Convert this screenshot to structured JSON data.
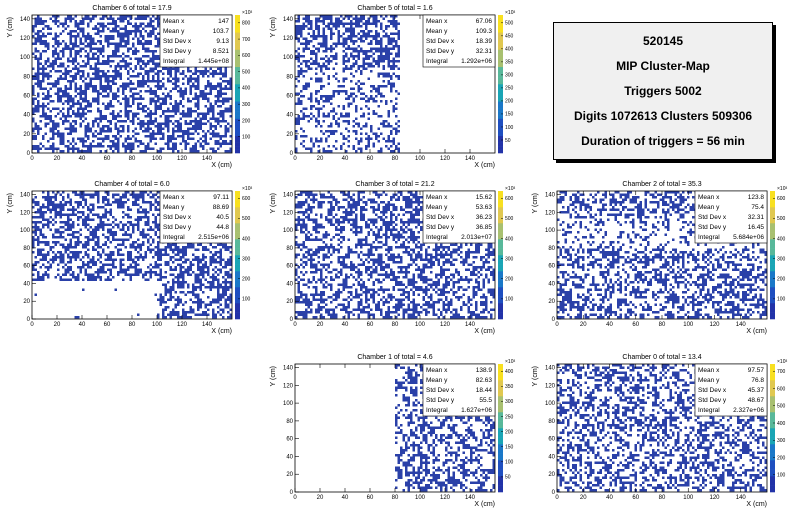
{
  "info": {
    "run": "520145",
    "title": "MIP Cluster-Map",
    "triggers": "Triggers 5002",
    "digits": "Digits 1072613 Clusters 509306",
    "duration": "Duration of triggers = 56 min"
  },
  "chart_data": [
    {
      "type": "heatmap",
      "title": "Chamber 6  of total = 17.9",
      "xlabel": "X (cm)",
      "ylabel": "Y (cm)",
      "xlim": [
        0,
        160
      ],
      "ylim": [
        0,
        144
      ],
      "xticks": [
        0,
        20,
        40,
        60,
        80,
        100,
        120,
        140
      ],
      "yticks": [
        0,
        20,
        40,
        60,
        80,
        100,
        120,
        140
      ],
      "z_exponent": "×10³",
      "zticks": [
        100,
        200,
        300,
        400,
        500,
        600,
        700,
        800
      ],
      "stats": [
        [
          "Mean x",
          "147"
        ],
        [
          "Mean y",
          "103.7"
        ],
        [
          "Std Dev x",
          "9.13"
        ],
        [
          "Std Dev y",
          "8.521"
        ],
        [
          "Integral",
          "1.445e+08"
        ]
      ]
    },
    {
      "type": "heatmap",
      "title": "Chamber 5  of total = 1.6",
      "xlabel": "X (cm)",
      "ylabel": "Y (cm)",
      "xlim": [
        0,
        160
      ],
      "ylim": [
        0,
        144
      ],
      "xticks": [
        0,
        20,
        40,
        60,
        80,
        100,
        120,
        140
      ],
      "yticks": [
        0,
        20,
        40,
        60,
        80,
        100,
        120,
        140
      ],
      "z_exponent": "×10³",
      "zticks": [
        50,
        100,
        150,
        200,
        250,
        300,
        350,
        400,
        450,
        500
      ],
      "stats": [
        [
          "Mean x",
          "67.06"
        ],
        [
          "Mean y",
          "109.3"
        ],
        [
          "Std Dev x",
          "18.39"
        ],
        [
          "Std Dev y",
          "32.31"
        ],
        [
          "Integral",
          "1.292e+06"
        ]
      ]
    },
    {
      "type": "heatmap",
      "title": "Chamber 4  of total = 6.0",
      "xlabel": "X (cm)",
      "ylabel": "Y (cm)",
      "xlim": [
        0,
        160
      ],
      "ylim": [
        0,
        144
      ],
      "xticks": [
        0,
        20,
        40,
        60,
        80,
        100,
        120,
        140
      ],
      "yticks": [
        0,
        20,
        40,
        60,
        80,
        100,
        120,
        140
      ],
      "z_exponent": "×10³",
      "zticks": [
        100,
        200,
        300,
        400,
        500,
        600
      ],
      "stats": [
        [
          "Mean x",
          "97.11"
        ],
        [
          "Mean y",
          "88.69"
        ],
        [
          "Std Dev x",
          "40.5"
        ],
        [
          "Std Dev y",
          "44.8"
        ],
        [
          "Integral",
          "2.515e+06"
        ]
      ]
    },
    {
      "type": "heatmap",
      "title": "Chamber 3  of total = 21.2",
      "xlabel": "X (cm)",
      "ylabel": "Y (cm)",
      "xlim": [
        0,
        160
      ],
      "ylim": [
        0,
        144
      ],
      "xticks": [
        0,
        20,
        40,
        60,
        80,
        100,
        120,
        140
      ],
      "yticks": [
        0,
        20,
        40,
        60,
        80,
        100,
        120,
        140
      ],
      "z_exponent": "×10³",
      "zticks": [
        100,
        200,
        300,
        400,
        500,
        600
      ],
      "stats": [
        [
          "Mean x",
          "15.62"
        ],
        [
          "Mean y",
          "53.63"
        ],
        [
          "Std Dev x",
          "36.23"
        ],
        [
          "Std Dev y",
          "36.85"
        ],
        [
          "Integral",
          "2.013e+07"
        ]
      ]
    },
    {
      "type": "heatmap",
      "title": "Chamber 2  of total = 35.3",
      "xlabel": "X (cm)",
      "ylabel": "Y (cm)",
      "xlim": [
        0,
        160
      ],
      "ylim": [
        0,
        144
      ],
      "xticks": [
        0,
        20,
        40,
        60,
        80,
        100,
        120,
        140
      ],
      "yticks": [
        0,
        20,
        40,
        60,
        80,
        100,
        120,
        140
      ],
      "z_exponent": "×10³",
      "zticks": [
        100,
        200,
        300,
        400,
        500,
        600
      ],
      "stats": [
        [
          "Mean x",
          "123.8"
        ],
        [
          "Mean y",
          "75.4"
        ],
        [
          "Std Dev x",
          "32.31"
        ],
        [
          "Std Dev y",
          "16.45"
        ],
        [
          "Integral",
          "5.684e+06"
        ]
      ]
    },
    {
      "type": "heatmap",
      "title": "Chamber 1  of total = 4.6",
      "xlabel": "X (cm)",
      "ylabel": "Y (cm)",
      "xlim": [
        0,
        160
      ],
      "ylim": [
        0,
        144
      ],
      "xticks": [
        0,
        20,
        40,
        60,
        80,
        100,
        120,
        140
      ],
      "yticks": [
        0,
        20,
        40,
        60,
        80,
        100,
        120,
        140
      ],
      "z_exponent": "×10³",
      "zticks": [
        50,
        100,
        150,
        200,
        250,
        300,
        350,
        400
      ],
      "stats": [
        [
          "Mean x",
          "138.9"
        ],
        [
          "Mean y",
          "82.63"
        ],
        [
          "Std Dev x",
          "18.44"
        ],
        [
          "Std Dev y",
          "55.5"
        ],
        [
          "Integral",
          "1.627e+06"
        ]
      ]
    },
    {
      "type": "heatmap",
      "title": "Chamber 0  of total = 13.4",
      "xlabel": "X (cm)",
      "ylabel": "Y (cm)",
      "xlim": [
        0,
        160
      ],
      "ylim": [
        0,
        144
      ],
      "xticks": [
        0,
        20,
        40,
        60,
        80,
        100,
        120,
        140
      ],
      "yticks": [
        0,
        20,
        40,
        60,
        80,
        100,
        120,
        140
      ],
      "z_exponent": "×10³",
      "zticks": [
        100,
        200,
        300,
        400,
        500,
        600,
        700
      ],
      "stats": [
        [
          "Mean x",
          "97.57"
        ],
        [
          "Mean y",
          "76.8"
        ],
        [
          "Std Dev x",
          "45.37"
        ],
        [
          "Std Dev y",
          "48.67"
        ],
        [
          "Integral",
          "2.327e+06"
        ]
      ]
    }
  ]
}
